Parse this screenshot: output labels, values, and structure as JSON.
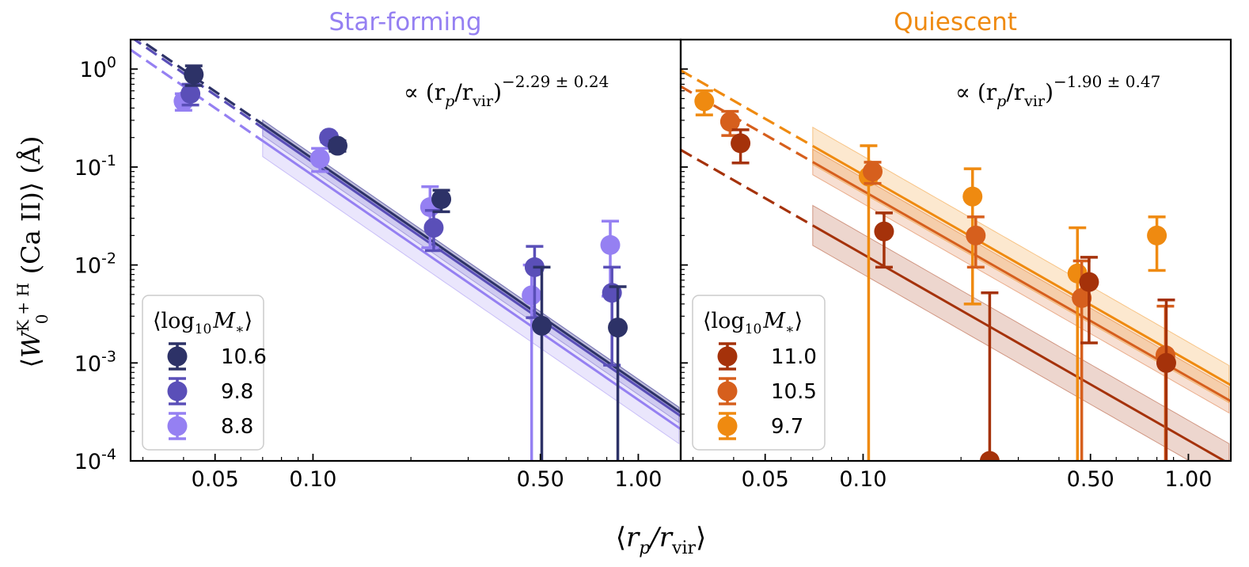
{
  "chart_data": {
    "type": "scatter",
    "shared": {
      "xlabel": "⟨r_p/r_vir⟩",
      "ylabel": "⟨W_0^{K+H} (Ca II)⟩ (Å)",
      "xscale": "log",
      "yscale": "log",
      "xlim": [
        0.0275,
        1.35
      ],
      "ylim": [
        0.0001,
        2.0
      ],
      "xticks": [
        "0.05",
        "0.10",
        "0.50",
        "1.00"
      ],
      "yticks": [
        "10^0",
        "10^-1",
        "10^-2",
        "10^-3",
        "10^-4"
      ],
      "ylabel_main": "W",
      "ylabel_sup": "K + H",
      "ylabel_sub": "0",
      "ylabel_tail": "(Ca II)",
      "ylabel_unit": "(Å)",
      "xlabel_main": "r",
      "xlabel_sub1": "p",
      "xlabel_mid": "/r",
      "xlabel_sub2": "vir",
      "fit_prefix": "∝ (r",
      "fit_sub1": "p",
      "fit_mid": "/r",
      "fit_sub2": "vir",
      "fit_close": ")"
    },
    "panels": [
      {
        "title": "Star-forming",
        "title_color": "#9580f2",
        "annotation_exponent": "−2.29 ± 0.24",
        "legend_title_main": "log",
        "legend_title_sub": "10",
        "legend_title_var": "M",
        "legend_title_star": "∗",
        "series": [
          {
            "name": "10.6",
            "color": "#2d3267",
            "points": [
              {
                "x": 0.043,
                "y": 0.88,
                "ylo": 0.68,
                "yhi": 1.08
              },
              {
                "x": 0.119,
                "y": 0.165,
                "ylo": 0.145,
                "yhi": 0.185
              },
              {
                "x": 0.248,
                "y": 0.047,
                "ylo": 0.035,
                "yhi": 0.058
              },
              {
                "x": 0.505,
                "y": 0.0024,
                "ylo": 9e-05,
                "yhi": 0.0095
              },
              {
                "x": 0.865,
                "y": 0.0023,
                "ylo": 9e-05,
                "yhi": 0.006
              }
            ],
            "fit": {
              "norm": 0.00062,
              "slope": -2.29,
              "band": 1.1
            }
          },
          {
            "name": "9.8",
            "color": "#5a4fb8",
            "points": [
              {
                "x": 0.042,
                "y": 0.56,
                "ylo": 0.43,
                "yhi": 0.7
              },
              {
                "x": 0.112,
                "y": 0.2,
                "ylo": 0.18,
                "yhi": 0.22
              },
              {
                "x": 0.235,
                "y": 0.024,
                "ylo": 0.014,
                "yhi": 0.036
              },
              {
                "x": 0.48,
                "y": 0.0095,
                "ylo": 0.0029,
                "yhi": 0.0155
              },
              {
                "x": 0.83,
                "y": 0.0052,
                "ylo": 0.00095,
                "yhi": 0.0095
              }
            ],
            "fit": {
              "norm": 0.00057,
              "slope": -2.29,
              "band": 1.2
            }
          },
          {
            "name": "8.8",
            "color": "#9580f2",
            "points": [
              {
                "x": 0.04,
                "y": 0.47,
                "ylo": 0.38,
                "yhi": 0.56
              },
              {
                "x": 0.105,
                "y": 0.122,
                "ylo": 0.09,
                "yhi": 0.155
              },
              {
                "x": 0.229,
                "y": 0.039,
                "ylo": 0.015,
                "yhi": 0.063
              },
              {
                "x": 0.47,
                "y": 0.0049,
                "ylo": 9e-05,
                "yhi": 0.01
              },
              {
                "x": 0.82,
                "y": 0.016,
                "ylo": 0.0048,
                "yhi": 0.028
              }
            ],
            "fit": {
              "norm": 0.00042,
              "slope": -2.29,
              "band": 1.45
            }
          }
        ]
      },
      {
        "title": "Quiescent",
        "title_color": "#ef8a10",
        "annotation_exponent": "−1.90 ± 0.47",
        "legend_title_main": "log",
        "legend_title_sub": "10",
        "legend_title_var": "M",
        "legend_title_star": "∗",
        "series": [
          {
            "name": "11.0",
            "color": "#a5320a",
            "points": [
              {
                "x": 0.042,
                "y": 0.175,
                "ylo": 0.11,
                "yhi": 0.24
              },
              {
                "x": 0.116,
                "y": 0.022,
                "ylo": 0.0095,
                "yhi": 0.034
              },
              {
                "x": 0.245,
                "y": 0.0001,
                "ylo": 9e-05,
                "yhi": 0.0052
              },
              {
                "x": 0.495,
                "y": 0.0067,
                "ylo": 0.0016,
                "yhi": 0.012
              },
              {
                "x": 0.855,
                "y": 0.001,
                "ylo": 9e-05,
                "yhi": 0.0044
              }
            ],
            "fit": {
              "norm": 0.000162,
              "slope": -1.9,
              "band": 1.6
            }
          },
          {
            "name": "10.5",
            "color": "#d65f1d",
            "points": [
              {
                "x": 0.039,
                "y": 0.29,
                "ylo": 0.21,
                "yhi": 0.37
              },
              {
                "x": 0.107,
                "y": 0.09,
                "ylo": 0.068,
                "yhi": 0.112
              },
              {
                "x": 0.222,
                "y": 0.02,
                "ylo": 0.0095,
                "yhi": 0.031
              },
              {
                "x": 0.47,
                "y": 0.0046,
                "ylo": 9e-05,
                "yhi": 0.011
              },
              {
                "x": 0.85,
                "y": 0.0012,
                "ylo": 9e-05,
                "yhi": 0.0038
              }
            ],
            "fit": {
              "norm": 0.00072,
              "slope": -1.9,
              "band": 1.35
            }
          },
          {
            "name": "9.7",
            "color": "#ef8a10",
            "points": [
              {
                "x": 0.0325,
                "y": 0.47,
                "ylo": 0.34,
                "yhi": 0.6
              },
              {
                "x": 0.104,
                "y": 0.08,
                "ylo": 9e-05,
                "yhi": 0.165
              },
              {
                "x": 0.217,
                "y": 0.05,
                "ylo": 0.004,
                "yhi": 0.096
              },
              {
                "x": 0.456,
                "y": 0.0082,
                "ylo": 9e-05,
                "yhi": 0.024
              },
              {
                "x": 0.8,
                "y": 0.02,
                "ylo": 0.0088,
                "yhi": 0.031
              }
            ],
            "fit": {
              "norm": 0.00105,
              "slope": -1.9,
              "band": 1.55
            }
          }
        ]
      }
    ]
  }
}
